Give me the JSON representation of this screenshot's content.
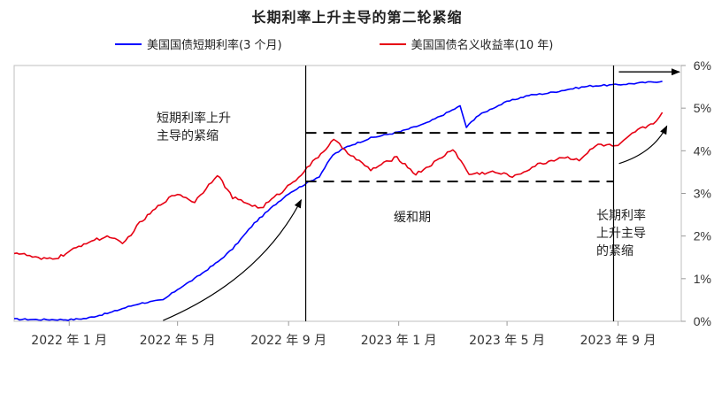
{
  "chart_data": {
    "type": "line",
    "title": "长期利率上升主导的第二轮紧缩",
    "xlabel": "",
    "ylabel": "",
    "x_tick_labels": [
      "2022 年 1 月",
      "2022 年 5 月",
      "2022 年 9 月",
      "2023 年 1 月",
      "2023 年 5 月",
      "2023 年 9 月"
    ],
    "y_tick_labels": [
      "0%",
      "1%",
      "2%",
      "3%",
      "4%",
      "5%",
      "6%"
    ],
    "ylim": [
      0,
      6
    ],
    "y_axis_side": "right",
    "grid": false,
    "legend_position": "top",
    "series": [
      {
        "name": "美国国债短期利率(3 个月)",
        "color": "#0000ff",
        "points": [
          [
            "2021-11-01",
            0.05
          ],
          [
            "2021-12-01",
            0.04
          ],
          [
            "2022-01-03",
            0.04
          ],
          [
            "2022-01-20",
            0.07
          ],
          [
            "2022-02-15",
            0.2
          ],
          [
            "2022-03-01",
            0.3
          ],
          [
            "2022-03-20",
            0.42
          ],
          [
            "2022-04-15",
            0.5
          ],
          [
            "2022-05-01",
            0.75
          ],
          [
            "2022-05-20",
            1.0
          ],
          [
            "2022-06-15",
            1.4
          ],
          [
            "2022-07-01",
            1.7
          ],
          [
            "2022-07-25",
            2.3
          ],
          [
            "2022-08-15",
            2.7
          ],
          [
            "2022-09-01",
            3.0
          ],
          [
            "2022-09-22",
            3.25
          ],
          [
            "2022-10-05",
            3.4
          ],
          [
            "2022-10-20",
            3.9
          ],
          [
            "2022-11-05",
            4.1
          ],
          [
            "2022-12-01",
            4.3
          ],
          [
            "2023-01-03",
            4.45
          ],
          [
            "2023-02-01",
            4.65
          ],
          [
            "2023-03-01",
            4.95
          ],
          [
            "2023-03-10",
            5.05
          ],
          [
            "2023-03-17",
            4.55
          ],
          [
            "2023-03-28",
            4.8
          ],
          [
            "2023-04-15",
            5.0
          ],
          [
            "2023-05-01",
            5.15
          ],
          [
            "2023-05-25",
            5.3
          ],
          [
            "2023-06-15",
            5.35
          ],
          [
            "2023-07-10",
            5.45
          ],
          [
            "2023-08-01",
            5.52
          ],
          [
            "2023-09-01",
            5.55
          ],
          [
            "2023-10-01",
            5.6
          ],
          [
            "2023-10-20",
            5.63
          ]
        ]
      },
      {
        "name": "美国国债名义收益率(10 年)",
        "color": "#e60012",
        "points": [
          [
            "2021-11-01",
            1.62
          ],
          [
            "2021-11-15",
            1.55
          ],
          [
            "2021-12-01",
            1.45
          ],
          [
            "2021-12-20",
            1.5
          ],
          [
            "2022-01-03",
            1.65
          ],
          [
            "2022-01-20",
            1.85
          ],
          [
            "2022-02-15",
            2.0
          ],
          [
            "2022-03-01",
            1.8
          ],
          [
            "2022-03-20",
            2.3
          ],
          [
            "2022-04-15",
            2.8
          ],
          [
            "2022-05-01",
            3.0
          ],
          [
            "2022-05-20",
            2.8
          ],
          [
            "2022-06-14",
            3.45
          ],
          [
            "2022-07-01",
            2.9
          ],
          [
            "2022-08-01",
            2.65
          ],
          [
            "2022-08-25",
            3.05
          ],
          [
            "2022-09-15",
            3.45
          ],
          [
            "2022-10-01",
            3.8
          ],
          [
            "2022-10-21",
            4.25
          ],
          [
            "2022-11-15",
            3.8
          ],
          [
            "2022-12-01",
            3.55
          ],
          [
            "2022-12-30",
            3.85
          ],
          [
            "2023-01-20",
            3.45
          ],
          [
            "2023-02-15",
            3.8
          ],
          [
            "2023-03-02",
            4.05
          ],
          [
            "2023-03-20",
            3.45
          ],
          [
            "2023-04-15",
            3.5
          ],
          [
            "2023-05-10",
            3.4
          ],
          [
            "2023-06-01",
            3.65
          ],
          [
            "2023-07-01",
            3.85
          ],
          [
            "2023-07-20",
            3.8
          ],
          [
            "2023-08-10",
            4.15
          ],
          [
            "2023-09-01",
            4.1
          ],
          [
            "2023-09-20",
            4.45
          ],
          [
            "2023-10-10",
            4.65
          ],
          [
            "2023-10-20",
            4.9
          ]
        ]
      }
    ],
    "annotations": {
      "label_first": [
        "短期利率上升",
        "主导的紧缩"
      ],
      "label_middle": "缓和期",
      "label_last": [
        "长期利率",
        "上升主导",
        "的紧缩"
      ]
    }
  }
}
